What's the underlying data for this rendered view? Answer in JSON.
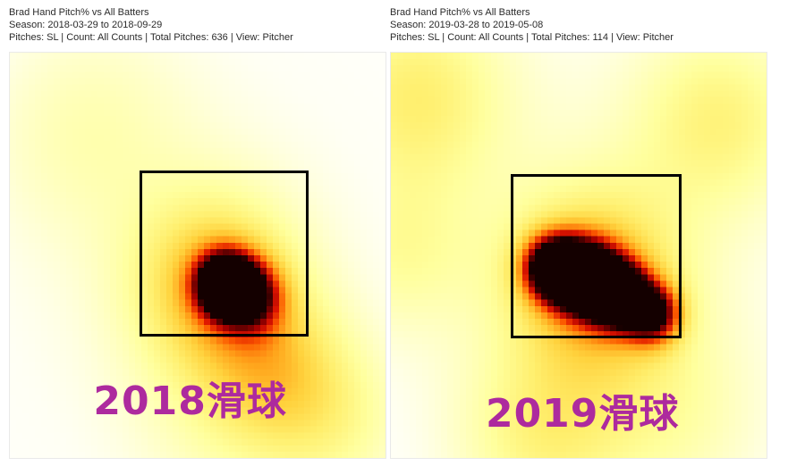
{
  "label_color": "#ad2a9e",
  "colormap": {
    "stops": [
      [
        0.0,
        "#ffffff"
      ],
      [
        0.06,
        "#fffff4"
      ],
      [
        0.14,
        "#ffffcf"
      ],
      [
        0.26,
        "#ffff9e"
      ],
      [
        0.38,
        "#ffef6e"
      ],
      [
        0.5,
        "#ffd23d"
      ],
      [
        0.6,
        "#ffa31a"
      ],
      [
        0.7,
        "#fb5a00"
      ],
      [
        0.78,
        "#dd1500"
      ],
      [
        0.86,
        "#a30000"
      ],
      [
        0.93,
        "#5c0000"
      ],
      [
        1.0,
        "#140000"
      ]
    ]
  },
  "panels": [
    {
      "header": {
        "title": "Brad Hand Pitch% vs All Batters",
        "season": "Season: 2018-03-29 to 2018-09-29",
        "details": "Pitches: SL | Count: All Counts | Total Pitches: 636 | View: Pitcher"
      },
      "label": "2018滑球"
    },
    {
      "header": {
        "title": "Brad Hand Pitch% vs All Batters",
        "season": "Season: 2019-03-28 to 2019-05-08",
        "details": "Pitches: SL | Count: All Counts | Total Pitches: 114 | View: Pitcher"
      },
      "label": "2019滑球"
    }
  ],
  "chart_data": [
    {
      "type": "heatmap",
      "title": "Brad Hand Pitch% vs All Batters",
      "season_start": "2018-03-29",
      "season_end": "2018-09-29",
      "pitch_filter": "SL",
      "count_filter": "All Counts",
      "total_pitches": 636,
      "view": "Pitcher",
      "annotation": "2018滑球",
      "strike_zone": {
        "x": 0.345,
        "y": 0.29,
        "w": 0.45,
        "h": 0.41
      },
      "density_peak": {
        "x": 0.573,
        "y": 0.57
      },
      "label_pos": {
        "x": 0.48,
        "y": 0.85
      },
      "gaussians": [
        {
          "x": 0.573,
          "y": 0.57,
          "s": 0.052,
          "a": 1.0
        },
        {
          "x": 0.64,
          "y": 0.6,
          "s": 0.06,
          "a": 0.55
        },
        {
          "x": 0.55,
          "y": 0.57,
          "s": 0.15,
          "a": 0.46
        },
        {
          "x": 0.5,
          "y": 0.55,
          "s": 0.46,
          "a": 0.11
        },
        {
          "x": 0.2,
          "y": 0.18,
          "s": 0.2,
          "a": 0.15
        },
        {
          "x": 0.72,
          "y": 0.78,
          "s": 0.13,
          "a": 0.22
        },
        {
          "x": 0.88,
          "y": 0.92,
          "s": 0.15,
          "a": 0.18
        },
        {
          "x": 0.6,
          "y": 0.88,
          "s": 0.18,
          "a": 0.15
        }
      ]
    },
    {
      "type": "heatmap",
      "title": "Brad Hand Pitch% vs All Batters",
      "season_start": "2019-03-28",
      "season_end": "2019-05-08",
      "pitch_filter": "SL",
      "count_filter": "All Counts",
      "total_pitches": 114,
      "view": "Pitcher",
      "annotation": "2019滑球",
      "strike_zone": {
        "x": 0.32,
        "y": 0.3,
        "w": 0.455,
        "h": 0.405
      },
      "density_peak": {
        "x": 0.52,
        "y": 0.56
      },
      "label_pos": {
        "x": 0.51,
        "y": 0.88
      },
      "gaussians": [
        {
          "x": 0.43,
          "y": 0.53,
          "s": 0.055,
          "a": 0.9
        },
        {
          "x": 0.52,
          "y": 0.555,
          "s": 0.06,
          "a": 1.0
        },
        {
          "x": 0.61,
          "y": 0.6,
          "s": 0.055,
          "a": 0.9
        },
        {
          "x": 0.7,
          "y": 0.645,
          "s": 0.05,
          "a": 0.7
        },
        {
          "x": 0.54,
          "y": 0.57,
          "s": 0.16,
          "a": 0.48
        },
        {
          "x": 0.5,
          "y": 0.52,
          "s": 0.47,
          "a": 0.12
        },
        {
          "x": 0.06,
          "y": 0.1,
          "s": 0.18,
          "a": 0.32
        },
        {
          "x": 0.88,
          "y": 0.16,
          "s": 0.17,
          "a": 0.28
        },
        {
          "x": 0.02,
          "y": 0.5,
          "s": 0.14,
          "a": 0.18
        },
        {
          "x": 0.4,
          "y": 0.95,
          "s": 0.16,
          "a": 0.25
        },
        {
          "x": 0.75,
          "y": 0.9,
          "s": 0.18,
          "a": 0.16
        }
      ]
    }
  ]
}
